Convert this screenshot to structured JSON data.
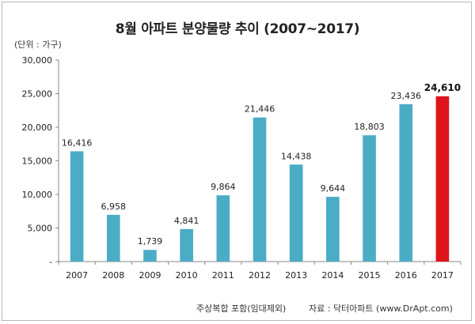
{
  "chart_data": {
    "type": "bar",
    "title": "8월 아파트 분양물량 추이 (2007~2017)",
    "unit_label": "(단위 : 가구)",
    "categories": [
      "2007",
      "2008",
      "2009",
      "2010",
      "2011",
      "2012",
      "2013",
      "2014",
      "2015",
      "2016",
      "2017"
    ],
    "values": [
      16416,
      6958,
      1739,
      4841,
      9864,
      21446,
      14438,
      9644,
      18803,
      23436,
      24610
    ],
    "value_labels": [
      "16,416",
      "6,958",
      "1,739",
      "4,841",
      "9,864",
      "21,446",
      "14,438",
      "9,644",
      "18,803",
      "23,436",
      "24,610"
    ],
    "highlight_index": 10,
    "ylim": [
      0,
      30000
    ],
    "yticks": [
      0,
      5000,
      10000,
      15000,
      20000,
      25000,
      30000
    ],
    "ytick_labels": [
      "-",
      "5,000",
      "10,000",
      "15,000",
      "20,000",
      "25,000",
      "30,000"
    ],
    "colors": {
      "bar": "#4bacc6",
      "highlight": "#e0141b"
    },
    "grid": false,
    "legend": "none"
  },
  "footer": {
    "note": "주상복합 포함(임대제외)",
    "source": "자료 : 닥터아파트 (www.DrApt.com)"
  }
}
